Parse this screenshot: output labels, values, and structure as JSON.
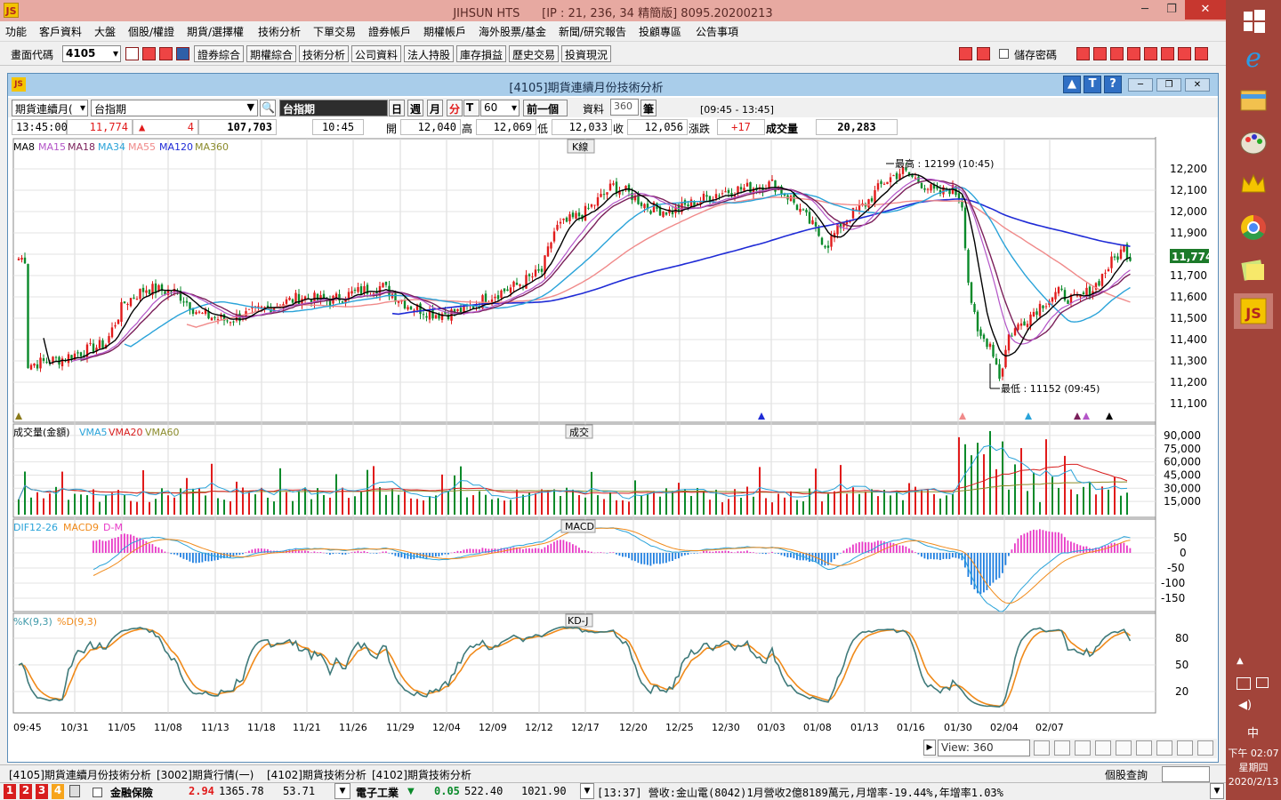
{
  "window": {
    "title": "JIHSUN HTS      [IP : 21, 236, 34 精簡版] 8095.20200213",
    "logo_text": "JS"
  },
  "menu": [
    "功能",
    "客戶資料",
    "大盤",
    "個股/權證",
    "期貨/選擇權",
    "技術分析",
    "下單交易",
    "證券帳戶",
    "期權帳戶",
    "海外股票/基金",
    "新聞/研究報告",
    "投顧專區",
    "公告事項"
  ],
  "toolbar": {
    "code_label": "畫面代碼",
    "code_value": "4105",
    "buttons": [
      "證券綜合",
      "期權綜合",
      "技術分析",
      "公司資料",
      "法人持股",
      "庫存損益",
      "歷史交易",
      "投資現況"
    ],
    "save_password": "儲存密碼"
  },
  "inner": {
    "title": "[4105]期貨連續月份技術分析",
    "help_buttons": [
      "▲",
      "T",
      "?"
    ]
  },
  "controls": {
    "market_select": "期貨連續月(",
    "product": "台指期",
    "product_name": "台指期",
    "periods": [
      "日",
      "週",
      "月",
      "分",
      "T"
    ],
    "active_period": "分",
    "minutes": "60",
    "prev_button": "前一個",
    "data_label": "資料",
    "data_count": "360",
    "unit": "筆",
    "time_range": "[09:45 - 13:45]"
  },
  "quote": {
    "time": "13:45:00",
    "price": "11,774",
    "change": "4",
    "volume": "107,703",
    "bar_time": "10:45",
    "open_label": "開",
    "open": "12,040",
    "high_label": "高",
    "high": "12,069",
    "low_label": "低",
    "low": "12,033",
    "close_label": "收",
    "close": "12,056",
    "chg_label": "漲跌",
    "chg": "+17",
    "vol_label": "成交量",
    "vol": "20,283"
  },
  "colors": {
    "up": "#e11b1b",
    "down": "#0a8a2a",
    "ma8": "#000000",
    "ma15": "#b455c8",
    "ma18": "#7a1f5a",
    "ma34": "#2aa3d9",
    "ma55": "#f08a8a",
    "ma120": "#1f2bd6",
    "ma360": "#8a8a2a"
  },
  "price_panel": {
    "panel_title": "K線",
    "legend": [
      "MA8",
      "MA15",
      "MA18",
      "MA34",
      "MA55",
      "MA120",
      "MA360"
    ],
    "y_ticks": [
      "12,200",
      "12,100",
      "12,000",
      "11,900",
      "11,800",
      "11,700",
      "11,600",
      "11,500",
      "11,400",
      "11,300",
      "11,200",
      "11,100"
    ],
    "high_note": "最高 : 12199 (10:45)",
    "low_note": "最低 : 11152 (09:45)",
    "last_price": "11,774"
  },
  "volume_panel": {
    "panel_title": "成交",
    "legend": [
      "成交量(金額)",
      "VMA5",
      "VMA20",
      "VMA60"
    ],
    "y_ticks": [
      "90,000",
      "75,000",
      "60,000",
      "45,000",
      "30,000",
      "15,000"
    ]
  },
  "macd_panel": {
    "panel_title": "MACD",
    "legend": [
      "DIF12-26",
      "MACD9",
      "D-M"
    ],
    "y_ticks": [
      "50",
      "0",
      "-50",
      "-100",
      "-150"
    ]
  },
  "kd_panel": {
    "panel_title": "KD-J",
    "legend": [
      "%K(9,3)",
      "%D(9,3)"
    ],
    "y_ticks": [
      "80",
      "50",
      "20"
    ]
  },
  "x_axis": [
    "09:45",
    "10/31",
    "11/05",
    "11/08",
    "11/13",
    "11/18",
    "11/21",
    "11/26",
    "11/29",
    "12/04",
    "12/09",
    "12/12",
    "12/17",
    "12/20",
    "12/25",
    "12/30",
    "01/03",
    "01/08",
    "01/13",
    "01/16",
    "01/30",
    "02/04",
    "02/07"
  ],
  "view": {
    "label": "View:",
    "count": "360"
  },
  "tabs": [
    "[4105]期貨連續月份技術分析",
    "[3002]期貨行情(一)",
    "[4102]期貨技術分析",
    "[4102]期貨技術分析"
  ],
  "stock_query": "個股查詢",
  "status": {
    "nums": [
      "1",
      "2",
      "3",
      "4"
    ],
    "name1": "金融保險",
    "chg1": "2.94",
    "idx1": "1365.78",
    "val1": "53.71",
    "name2": "電子工業",
    "chg2": "0.05",
    "idx2": "522.40",
    "val2": "1021.90",
    "news": "[13:37] 營收:金山電(8042)1月營收2億8189萬元,月增率-19.44%,年增率1.03%"
  },
  "clock": {
    "time": "下午 02:07",
    "day": "星期四",
    "date": "2020/2/13",
    "ime": "中"
  }
}
